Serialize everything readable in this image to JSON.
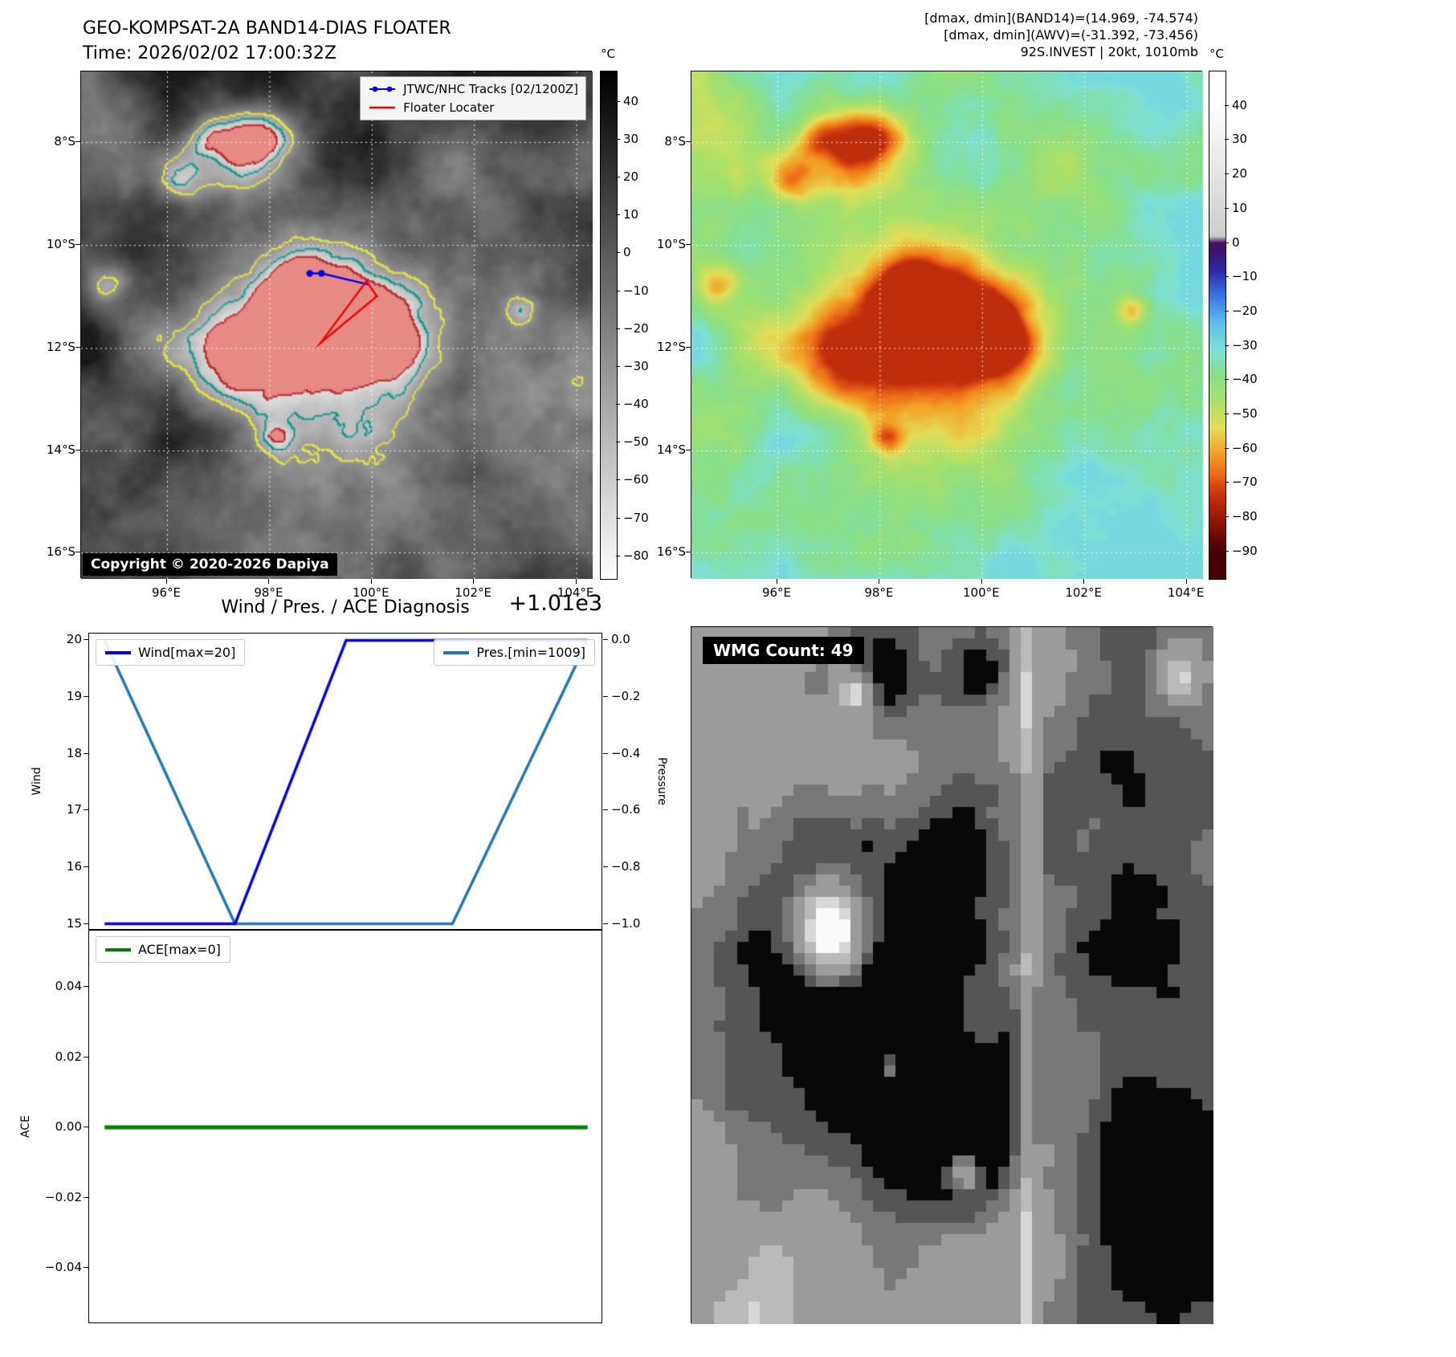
{
  "band14": {
    "title": "GEO-KOMPSAT-2A BAND14-DIAS FLOATER",
    "time": "Time: 2026/02/02 17:00:32Z",
    "legend": [
      {
        "label": "JTWC/NHC Tracks [02/1200Z]",
        "color": "#0000ee"
      },
      {
        "label": "Floater Locater",
        "color": "#ee0000"
      }
    ],
    "copyright": "Copyright © 2020-2026 Dapiya",
    "colorbar_unit": "°C",
    "colorbar_ticks": [
      "40",
      "30",
      "20",
      "10",
      "0",
      "−10",
      "−20",
      "−30",
      "−40",
      "−50",
      "−60",
      "−70",
      "−80"
    ],
    "lat_ticks": [
      "8°S",
      "10°S",
      "12°S",
      "14°S",
      "16°S"
    ],
    "lon_ticks": [
      "96°E",
      "98°E",
      "100°E",
      "102°E",
      "104°E"
    ]
  },
  "awv": {
    "header_lines": [
      "[dmax, dmin](BAND14)=(14.969, -74.574)",
      "[dmax, dmin](AWV)=(-31.392, -73.456)",
      "92S.INVEST | 20kt, 1010mb"
    ],
    "colorbar_unit": "°C",
    "colorbar_ticks": [
      "40",
      "30",
      "20",
      "10",
      "0",
      "−10",
      "−20",
      "−30",
      "−40",
      "−50",
      "−60",
      "−70",
      "−80",
      "−90"
    ],
    "lat_ticks": [
      "8°S",
      "10°S",
      "12°S",
      "14°S",
      "16°S"
    ],
    "lon_ticks": [
      "96°E",
      "98°E",
      "100°E",
      "102°E",
      "104°E"
    ]
  },
  "wmg": {
    "label": "WMG Count: 49"
  },
  "chart_data": [
    {
      "type": "line",
      "title": "Wind / Pres. / ACE Diagnosis",
      "offset_text": "+1.01e3",
      "left_axis": {
        "label": "Wind",
        "ticks": [
          20,
          19,
          18,
          17,
          16,
          15
        ],
        "ylim": [
          14.88,
          20.12
        ]
      },
      "right_axis": {
        "label": "Pressure",
        "ticks": [
          "0.0",
          "−0.2",
          "−0.4",
          "−0.6",
          "−0.8",
          "−1.0"
        ],
        "ylim": [
          -1.024,
          0.024
        ],
        "offset": 1010
      },
      "series": [
        {
          "name": "Wind[max=20]",
          "color": "#0000e0",
          "axis": "left",
          "x": [
            0,
            0.27,
            0.5,
            1
          ],
          "values": [
            15,
            15,
            20,
            20
          ]
        },
        {
          "name": "Pres.[min=1009]",
          "color": "#1f77b4",
          "axis": "right",
          "x": [
            0,
            0.27,
            0.72,
            1
          ],
          "values": [
            1010,
            1009,
            1009,
            1010
          ]
        }
      ]
    },
    {
      "type": "line",
      "left_axis": {
        "label": "ACE",
        "ticks": [
          "0.04",
          "0.02",
          "0.00",
          "−0.02",
          "−0.04"
        ],
        "ylim": [
          -0.056,
          0.056
        ]
      },
      "series": [
        {
          "name": "ACE[max=0]",
          "color": "#008000",
          "axis": "left",
          "x": [
            0,
            1
          ],
          "values": [
            0,
            0
          ]
        }
      ]
    }
  ]
}
